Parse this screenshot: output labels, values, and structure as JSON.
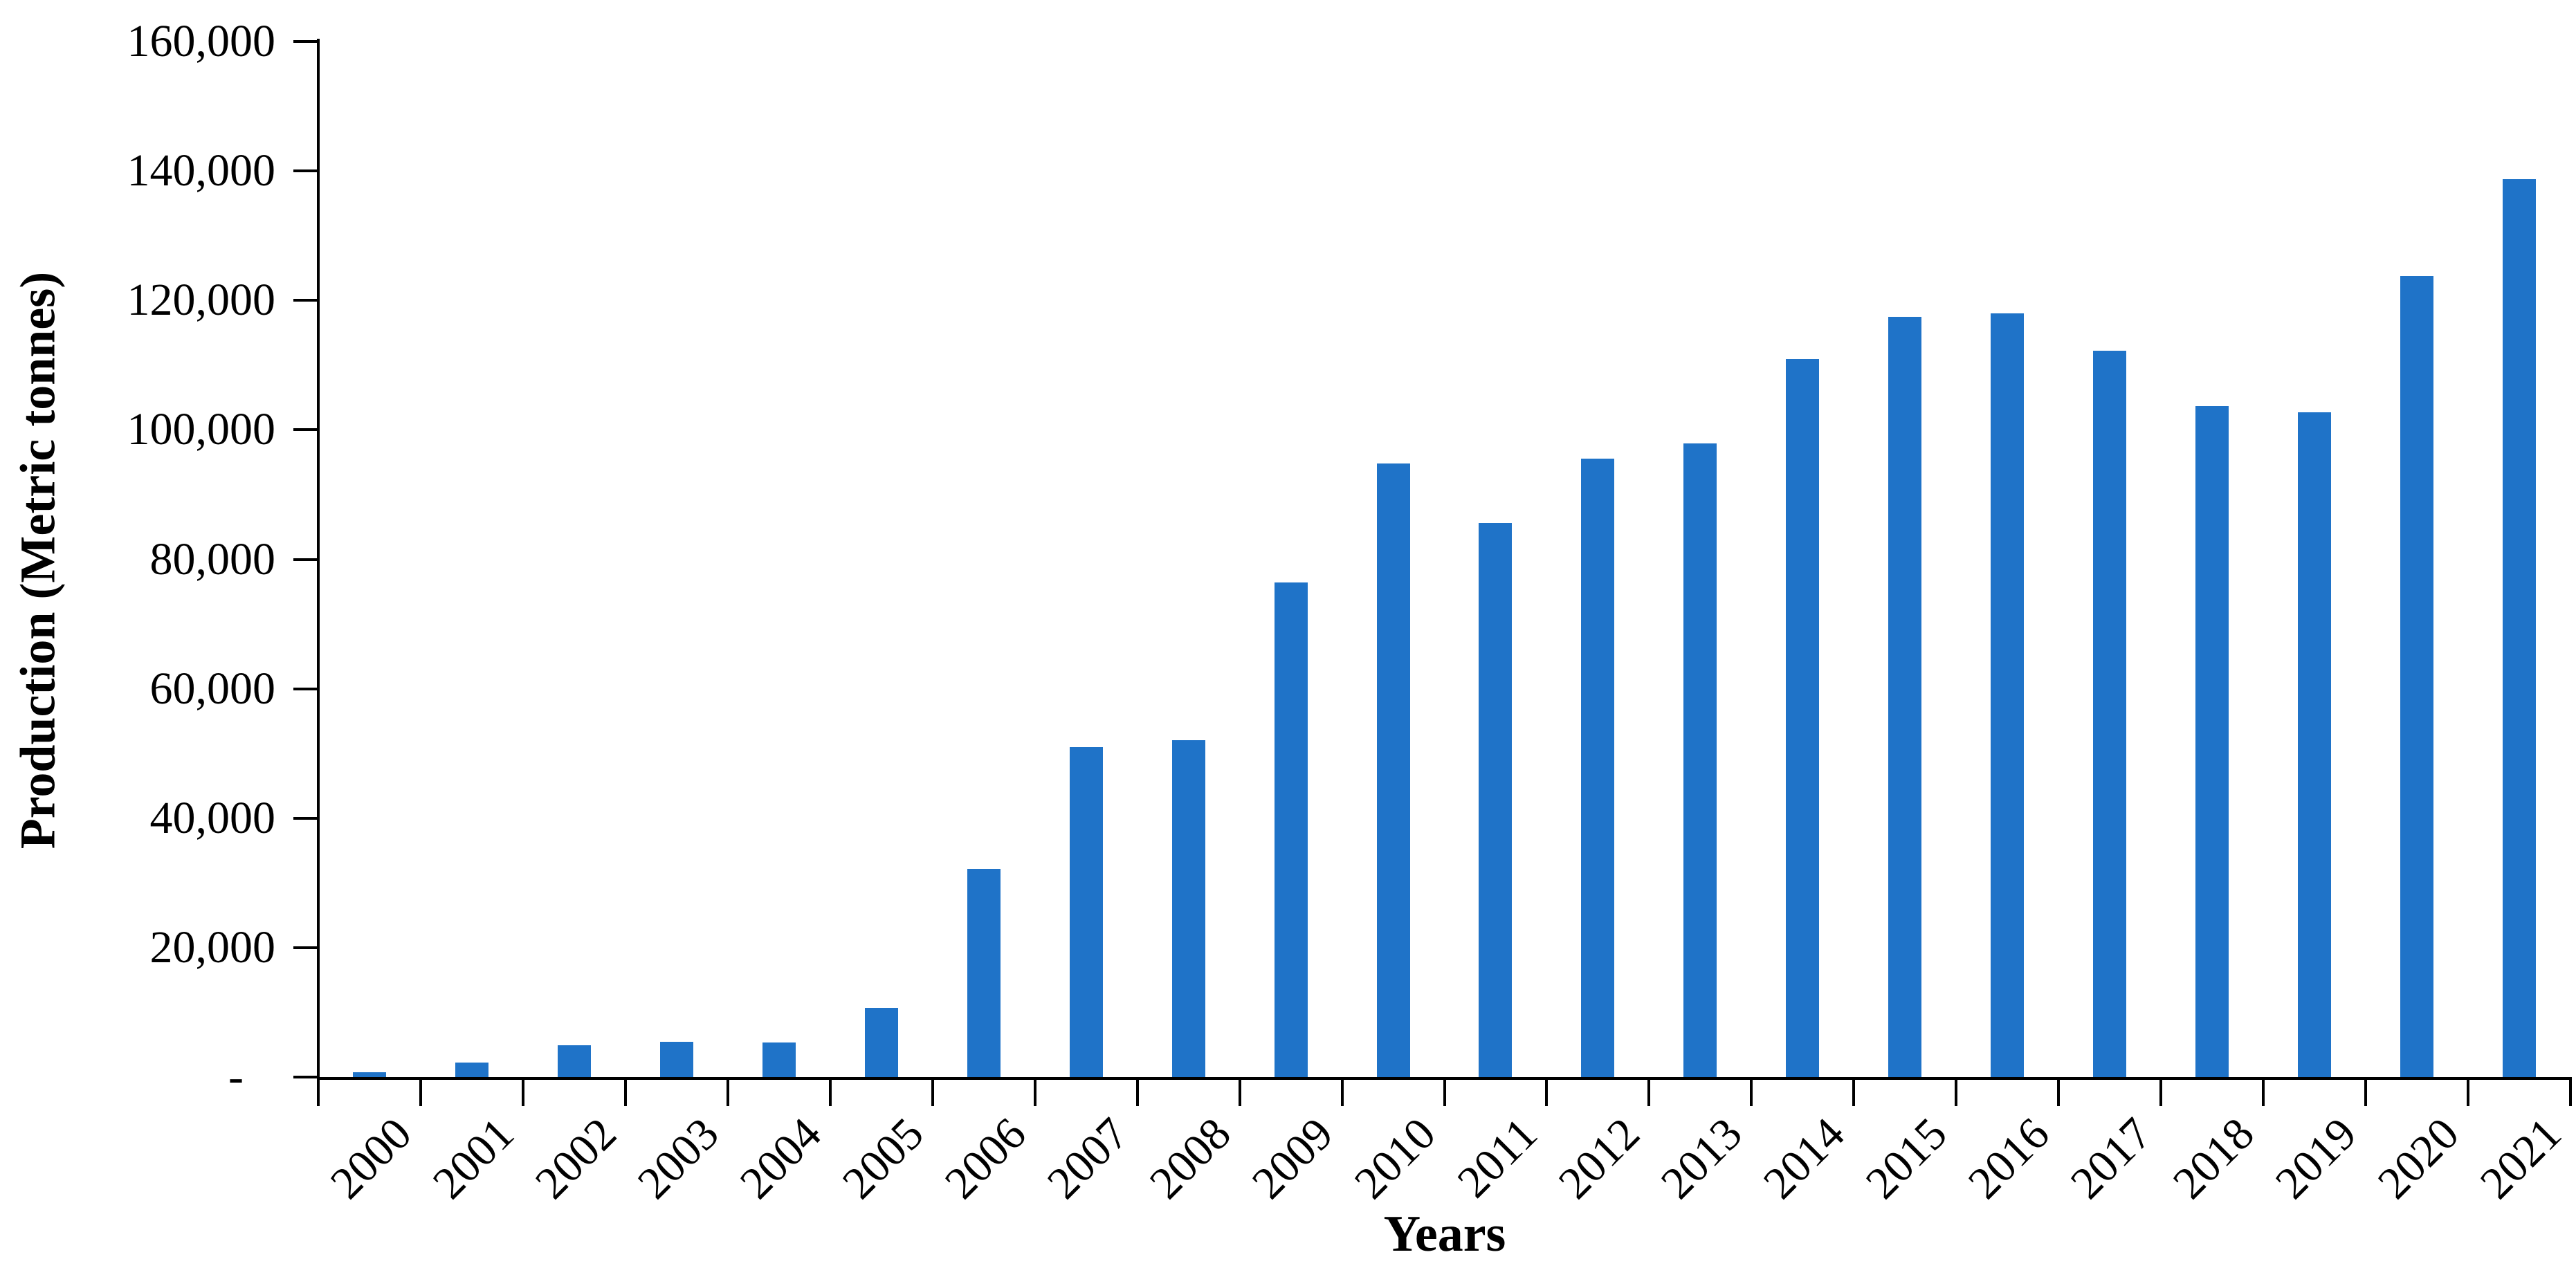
{
  "chart_data": {
    "type": "bar",
    "title": "",
    "categories": [
      "2000",
      "2001",
      "2002",
      "2003",
      "2004",
      "2005",
      "2006",
      "2007",
      "2008",
      "2009",
      "2010",
      "2011",
      "2012",
      "2013",
      "2014",
      "2015",
      "2016",
      "2017",
      "2018",
      "2019",
      "2020",
      "2021"
    ],
    "values": [
      800,
      2200,
      4900,
      5400,
      5300,
      10700,
      32200,
      51000,
      52100,
      76400,
      94800,
      85600,
      95600,
      97900,
      110900,
      117500,
      118000,
      112200,
      103700,
      102700,
      123800,
      138700
    ],
    "xlabel": "Years",
    "ylabel": "Production (Metric tonnes)",
    "ylim": [
      0,
      160000
    ],
    "ytick_step": 20000,
    "ytick_labels_top_to_bottom": [
      "160,000",
      "140,000",
      "120,000",
      "100,000",
      "80,000",
      "60,000",
      "40,000",
      "20,000",
      "-"
    ],
    "zero_label": "-",
    "bar_color": "#1F73C8",
    "axis_color": "#000000",
    "text_color": "#000000",
    "grid": false,
    "legend": "none"
  }
}
